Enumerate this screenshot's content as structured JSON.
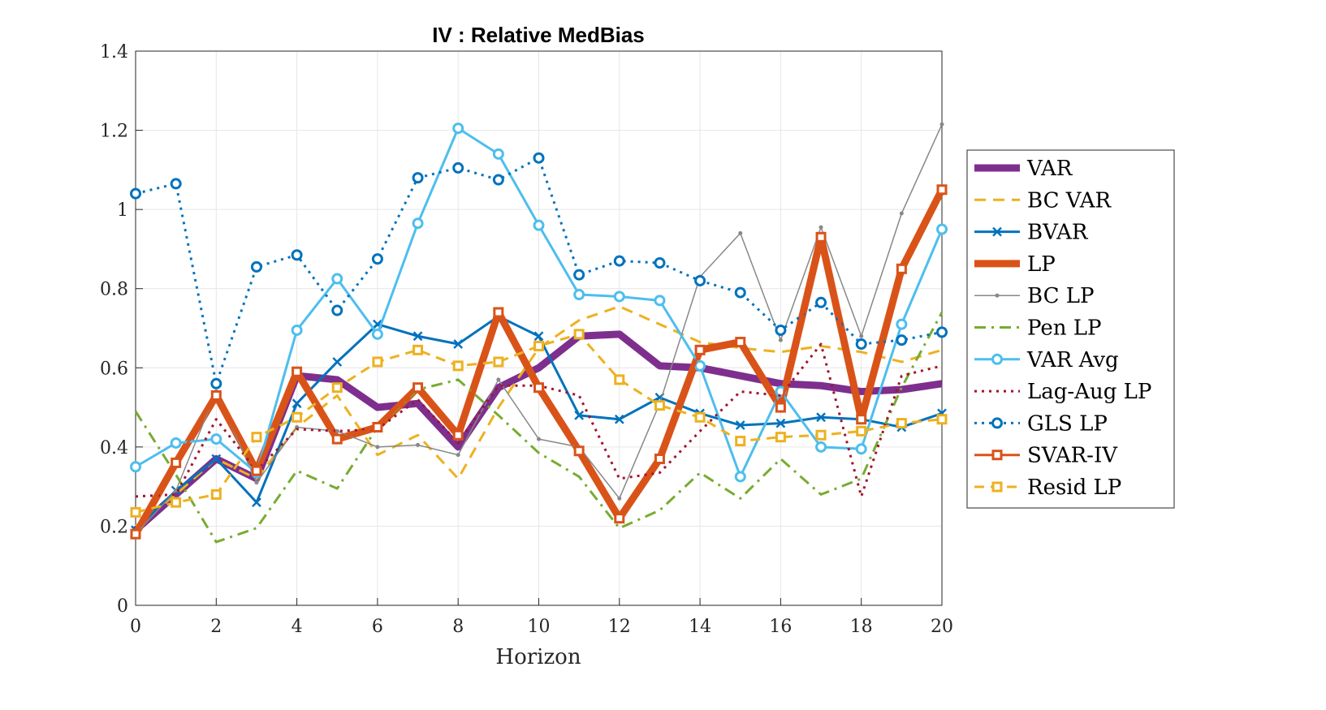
{
  "chart_data": {
    "type": "line",
    "title": "IV : Relative MedBias",
    "xlabel": "Horizon",
    "ylabel": "",
    "xlim": [
      0,
      20
    ],
    "ylim": [
      0,
      1.4
    ],
    "xticks": [
      0,
      2,
      4,
      6,
      8,
      10,
      12,
      14,
      16,
      18,
      20
    ],
    "yticks": [
      0,
      0.2,
      0.4,
      0.6,
      0.8,
      1,
      1.2,
      1.4
    ],
    "ytick_labels": [
      "0",
      "0.2",
      "0.4",
      "0.6",
      "0.8",
      "1",
      "1.2",
      "1.4"
    ],
    "grid": true,
    "legend_position": "right-outside",
    "x": [
      0,
      1,
      2,
      3,
      4,
      5,
      6,
      7,
      8,
      9,
      10,
      11,
      12,
      13,
      14,
      15,
      16,
      17,
      18,
      19,
      20
    ],
    "series": [
      {
        "name": "VAR",
        "color": "#7e2f8e",
        "width": 9,
        "dash": "",
        "marker": "none",
        "values": [
          0.19,
          0.28,
          0.37,
          0.32,
          0.58,
          0.57,
          0.5,
          0.51,
          0.4,
          0.55,
          0.6,
          0.68,
          0.685,
          0.605,
          0.6,
          0.58,
          0.56,
          0.555,
          0.54,
          0.545,
          0.56
        ]
      },
      {
        "name": "BC VAR",
        "color": "#edb120",
        "width": 3,
        "dash": "14,9",
        "marker": "none",
        "values": [
          0.2,
          0.28,
          0.37,
          0.32,
          0.45,
          0.53,
          0.38,
          0.43,
          0.32,
          0.5,
          0.65,
          0.72,
          0.755,
          0.71,
          0.665,
          0.65,
          0.64,
          0.655,
          0.64,
          0.615,
          0.645
        ]
      },
      {
        "name": "BVAR",
        "color": "#0072bd",
        "width": 3,
        "dash": "",
        "marker": "x",
        "values": [
          0.19,
          0.29,
          0.37,
          0.26,
          0.51,
          0.615,
          0.71,
          0.68,
          0.66,
          0.73,
          0.68,
          0.48,
          0.47,
          0.525,
          0.485,
          0.455,
          0.46,
          0.475,
          0.47,
          0.45,
          0.485
        ]
      },
      {
        "name": "LP",
        "color": "#d95319",
        "width": 9,
        "dash": "",
        "marker": "none",
        "values": [
          0.18,
          0.36,
          0.53,
          0.34,
          0.59,
          0.42,
          0.45,
          0.55,
          0.43,
          0.74,
          0.55,
          0.39,
          0.22,
          0.37,
          0.645,
          0.665,
          0.5,
          0.93,
          0.47,
          0.85,
          1.05
        ]
      },
      {
        "name": "BC LP",
        "color": "#888888",
        "width": 1.5,
        "dash": "",
        "marker": "dot",
        "values": [
          0.18,
          0.29,
          0.54,
          0.31,
          0.45,
          0.44,
          0.4,
          0.405,
          0.38,
          0.57,
          0.42,
          0.4,
          0.27,
          0.51,
          0.83,
          0.94,
          0.67,
          0.955,
          0.68,
          0.99,
          1.215
        ]
      },
      {
        "name": "Pen LP",
        "color": "#77ac30",
        "width": 3,
        "dash": "14,7,3,7",
        "marker": "none",
        "values": [
          0.49,
          0.33,
          0.16,
          0.195,
          0.34,
          0.295,
          0.45,
          0.545,
          0.57,
          0.48,
          0.385,
          0.325,
          0.195,
          0.24,
          0.335,
          0.27,
          0.37,
          0.28,
          0.32,
          0.55,
          0.74
        ]
      },
      {
        "name": "VAR Avg",
        "color": "#4dbeee",
        "width": 3,
        "dash": "",
        "marker": "circle",
        "values": [
          0.35,
          0.41,
          0.42,
          0.335,
          0.695,
          0.825,
          0.685,
          0.965,
          1.205,
          1.14,
          0.96,
          0.785,
          0.78,
          0.77,
          0.605,
          0.325,
          0.54,
          0.4,
          0.395,
          0.71,
          0.95
        ]
      },
      {
        "name": "Lag-Aug LP",
        "color": "#a2142f",
        "width": 3,
        "dash": "3,6",
        "marker": "none",
        "values": [
          0.275,
          0.28,
          0.47,
          0.34,
          0.445,
          0.44,
          0.445,
          0.52,
          0.41,
          0.555,
          0.555,
          0.53,
          0.32,
          0.335,
          0.44,
          0.54,
          0.53,
          0.66,
          0.275,
          0.58,
          0.605
        ]
      },
      {
        "name": "GLS LP",
        "color": "#0072bd",
        "width": 3,
        "dash": "3,6",
        "marker": "circle",
        "values": [
          1.04,
          1.065,
          0.56,
          0.855,
          0.885,
          0.745,
          0.875,
          1.08,
          1.105,
          1.075,
          1.13,
          0.835,
          0.87,
          0.865,
          0.82,
          0.79,
          0.695,
          0.765,
          0.66,
          0.67,
          0.69
        ]
      },
      {
        "name": "SVAR-IV",
        "color": "#d95319",
        "width": 3,
        "dash": "",
        "marker": "square",
        "values": [
          0.18,
          0.36,
          0.53,
          0.34,
          0.59,
          0.42,
          0.45,
          0.55,
          0.43,
          0.74,
          0.55,
          0.39,
          0.22,
          0.37,
          0.645,
          0.665,
          0.5,
          0.93,
          0.47,
          0.85,
          1.05
        ]
      },
      {
        "name": "Resid LP",
        "color": "#edb120",
        "width": 3,
        "dash": "12,8",
        "marker": "square",
        "values": [
          0.235,
          0.26,
          0.28,
          0.425,
          0.475,
          0.55,
          0.615,
          0.645,
          0.605,
          0.615,
          0.655,
          0.685,
          0.57,
          0.505,
          0.475,
          0.415,
          0.425,
          0.43,
          0.44,
          0.46,
          0.47
        ]
      }
    ]
  }
}
